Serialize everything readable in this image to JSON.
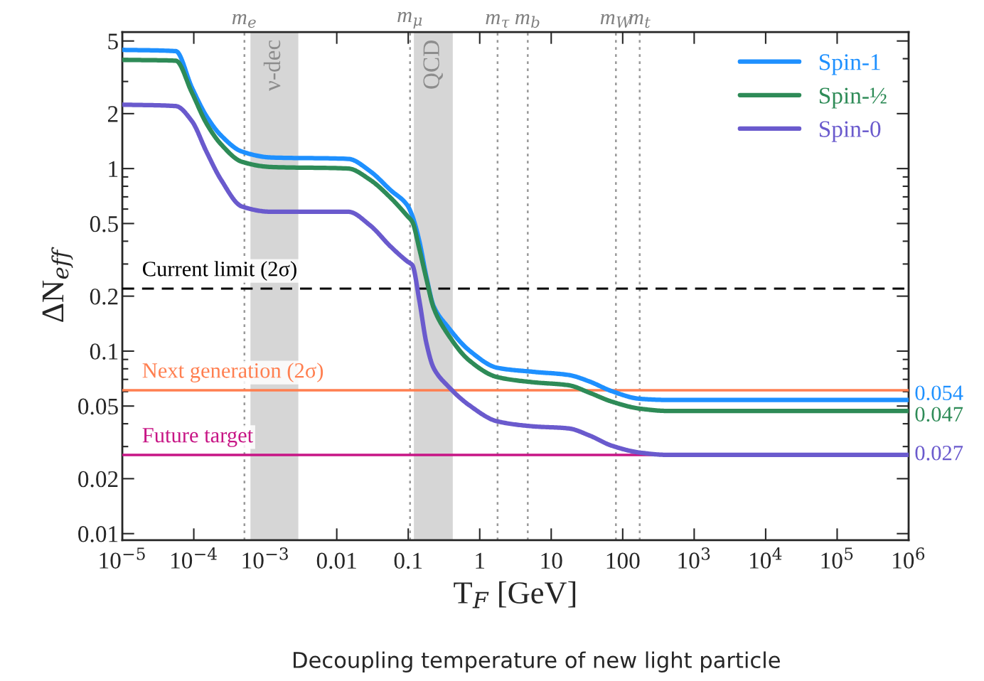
{
  "chart_data": {
    "type": "line",
    "xlabel": "T$_{F}$ [GeV]",
    "ylabel": "ΔN$_{eff}$",
    "x": [
      1e-05,
      5.6e-05,
      9.4e-05,
      0.00015,
      0.00024,
      0.00047,
      0.0012,
      0.0145,
      0.029,
      0.057,
      0.097,
      0.114,
      0.143,
      0.18,
      0.226,
      0.357,
      0.71,
      1.77,
      5.6,
      17.5,
      34.8,
      69,
      173,
      430,
      1000000.0
    ],
    "series": [
      {
        "name": "Spin-1",
        "color": "#1e90ff",
        "values": [
          4.47,
          4.4,
          2.78,
          1.94,
          1.52,
          1.24,
          1.15,
          1.13,
          0.97,
          0.76,
          0.63,
          0.55,
          0.4,
          0.254,
          0.177,
          0.136,
          0.101,
          0.081,
          0.077,
          0.074,
          0.068,
          0.0605,
          0.0548,
          0.054,
          0.054
        ]
      },
      {
        "name": "Spin-½",
        "color": "#2e8b57",
        "values": [
          3.94,
          3.9,
          2.61,
          1.77,
          1.36,
          1.09,
          1.02,
          1.0,
          0.87,
          0.69,
          0.55,
          0.51,
          0.363,
          0.247,
          0.173,
          0.124,
          0.089,
          0.072,
          0.0675,
          0.065,
          0.059,
          0.053,
          0.0484,
          0.047,
          0.047
        ]
      },
      {
        "name": "Spin-0",
        "color": "#6a5acd",
        "values": [
          2.24,
          2.2,
          1.82,
          1.24,
          0.87,
          0.62,
          0.58,
          0.58,
          0.49,
          0.373,
          0.31,
          0.296,
          0.189,
          0.11,
          0.081,
          0.0645,
          0.0506,
          0.0412,
          0.0387,
          0.0377,
          0.0344,
          0.0304,
          0.0278,
          0.027,
          0.027
        ]
      }
    ],
    "log": "xy",
    "xlim": [
      1e-05,
      1000000.0
    ],
    "ylim": [
      0.0092,
      5.6
    ],
    "xticks": [
      {
        "value": 1e-05,
        "label": "10$^{−5}$"
      },
      {
        "value": 0.0001,
        "label": "10$^{−4}$"
      },
      {
        "value": 0.001,
        "label": "10$^{−3}$"
      },
      0.01,
      0.1,
      1,
      10,
      100,
      {
        "value": 1000,
        "label": "10$^{3}$"
      },
      {
        "value": 10000,
        "label": "10$^{4}$"
      },
      {
        "value": 100000,
        "label": "10$^{5}$"
      },
      {
        "value": 1000000,
        "label": "10$^{6}$"
      }
    ],
    "yticks": [
      0.01,
      0.02,
      0.05,
      0.1,
      0.2,
      0.5,
      1,
      2,
      5
    ],
    "ref_lines": [
      {
        "axis": "y",
        "value": 0.22,
        "label": "Current limit (2σ)",
        "color": "#000000",
        "line_style": "dashed"
      },
      {
        "axis": "y",
        "value": 0.061,
        "label": "Next generation (2σ)",
        "color": "#ff7f50",
        "line_style": "solid"
      },
      {
        "axis": "y",
        "value": 0.027,
        "label": "Future target",
        "color": "#c71585",
        "line_style": "solid"
      },
      {
        "axis": "x",
        "value": 0.000511,
        "label": "m$_{e}$",
        "color": "#999999",
        "line_style": "dotted"
      },
      {
        "axis": "x",
        "value": 0.106,
        "label": "m$_{μ}$",
        "color": "#999999",
        "line_style": "dotted"
      },
      {
        "axis": "x",
        "value": 1.777,
        "label": "m$_{τ}$",
        "color": "#999999",
        "line_style": "dotted"
      },
      {
        "axis": "x",
        "value": 4.7,
        "label": "m$_{b}$",
        "color": "#999999",
        "line_style": "dotted"
      },
      {
        "axis": "x",
        "value": 80.4,
        "label": "m$_{W}$",
        "color": "#999999",
        "line_style": "dotted"
      },
      {
        "axis": "x",
        "value": 173,
        "label": "m$_{t}$",
        "color": "#999999",
        "line_style": "dotted"
      }
    ],
    "bands": [
      {
        "axis": "x",
        "from": 0.00062,
        "to": 0.0029,
        "label": "ν-dec",
        "color": "#d6d6d6"
      },
      {
        "axis": "x",
        "from": 0.12,
        "to": 0.42,
        "label": "QCD",
        "color": "#d6d6d6"
      }
    ],
    "annotations": [
      "0.054",
      "0.047",
      "0.027",
      "Decoupling temperature of new light particle"
    ],
    "legend": "top right",
    "grid": false,
    "marker": "none",
    "line_style": "solid"
  }
}
